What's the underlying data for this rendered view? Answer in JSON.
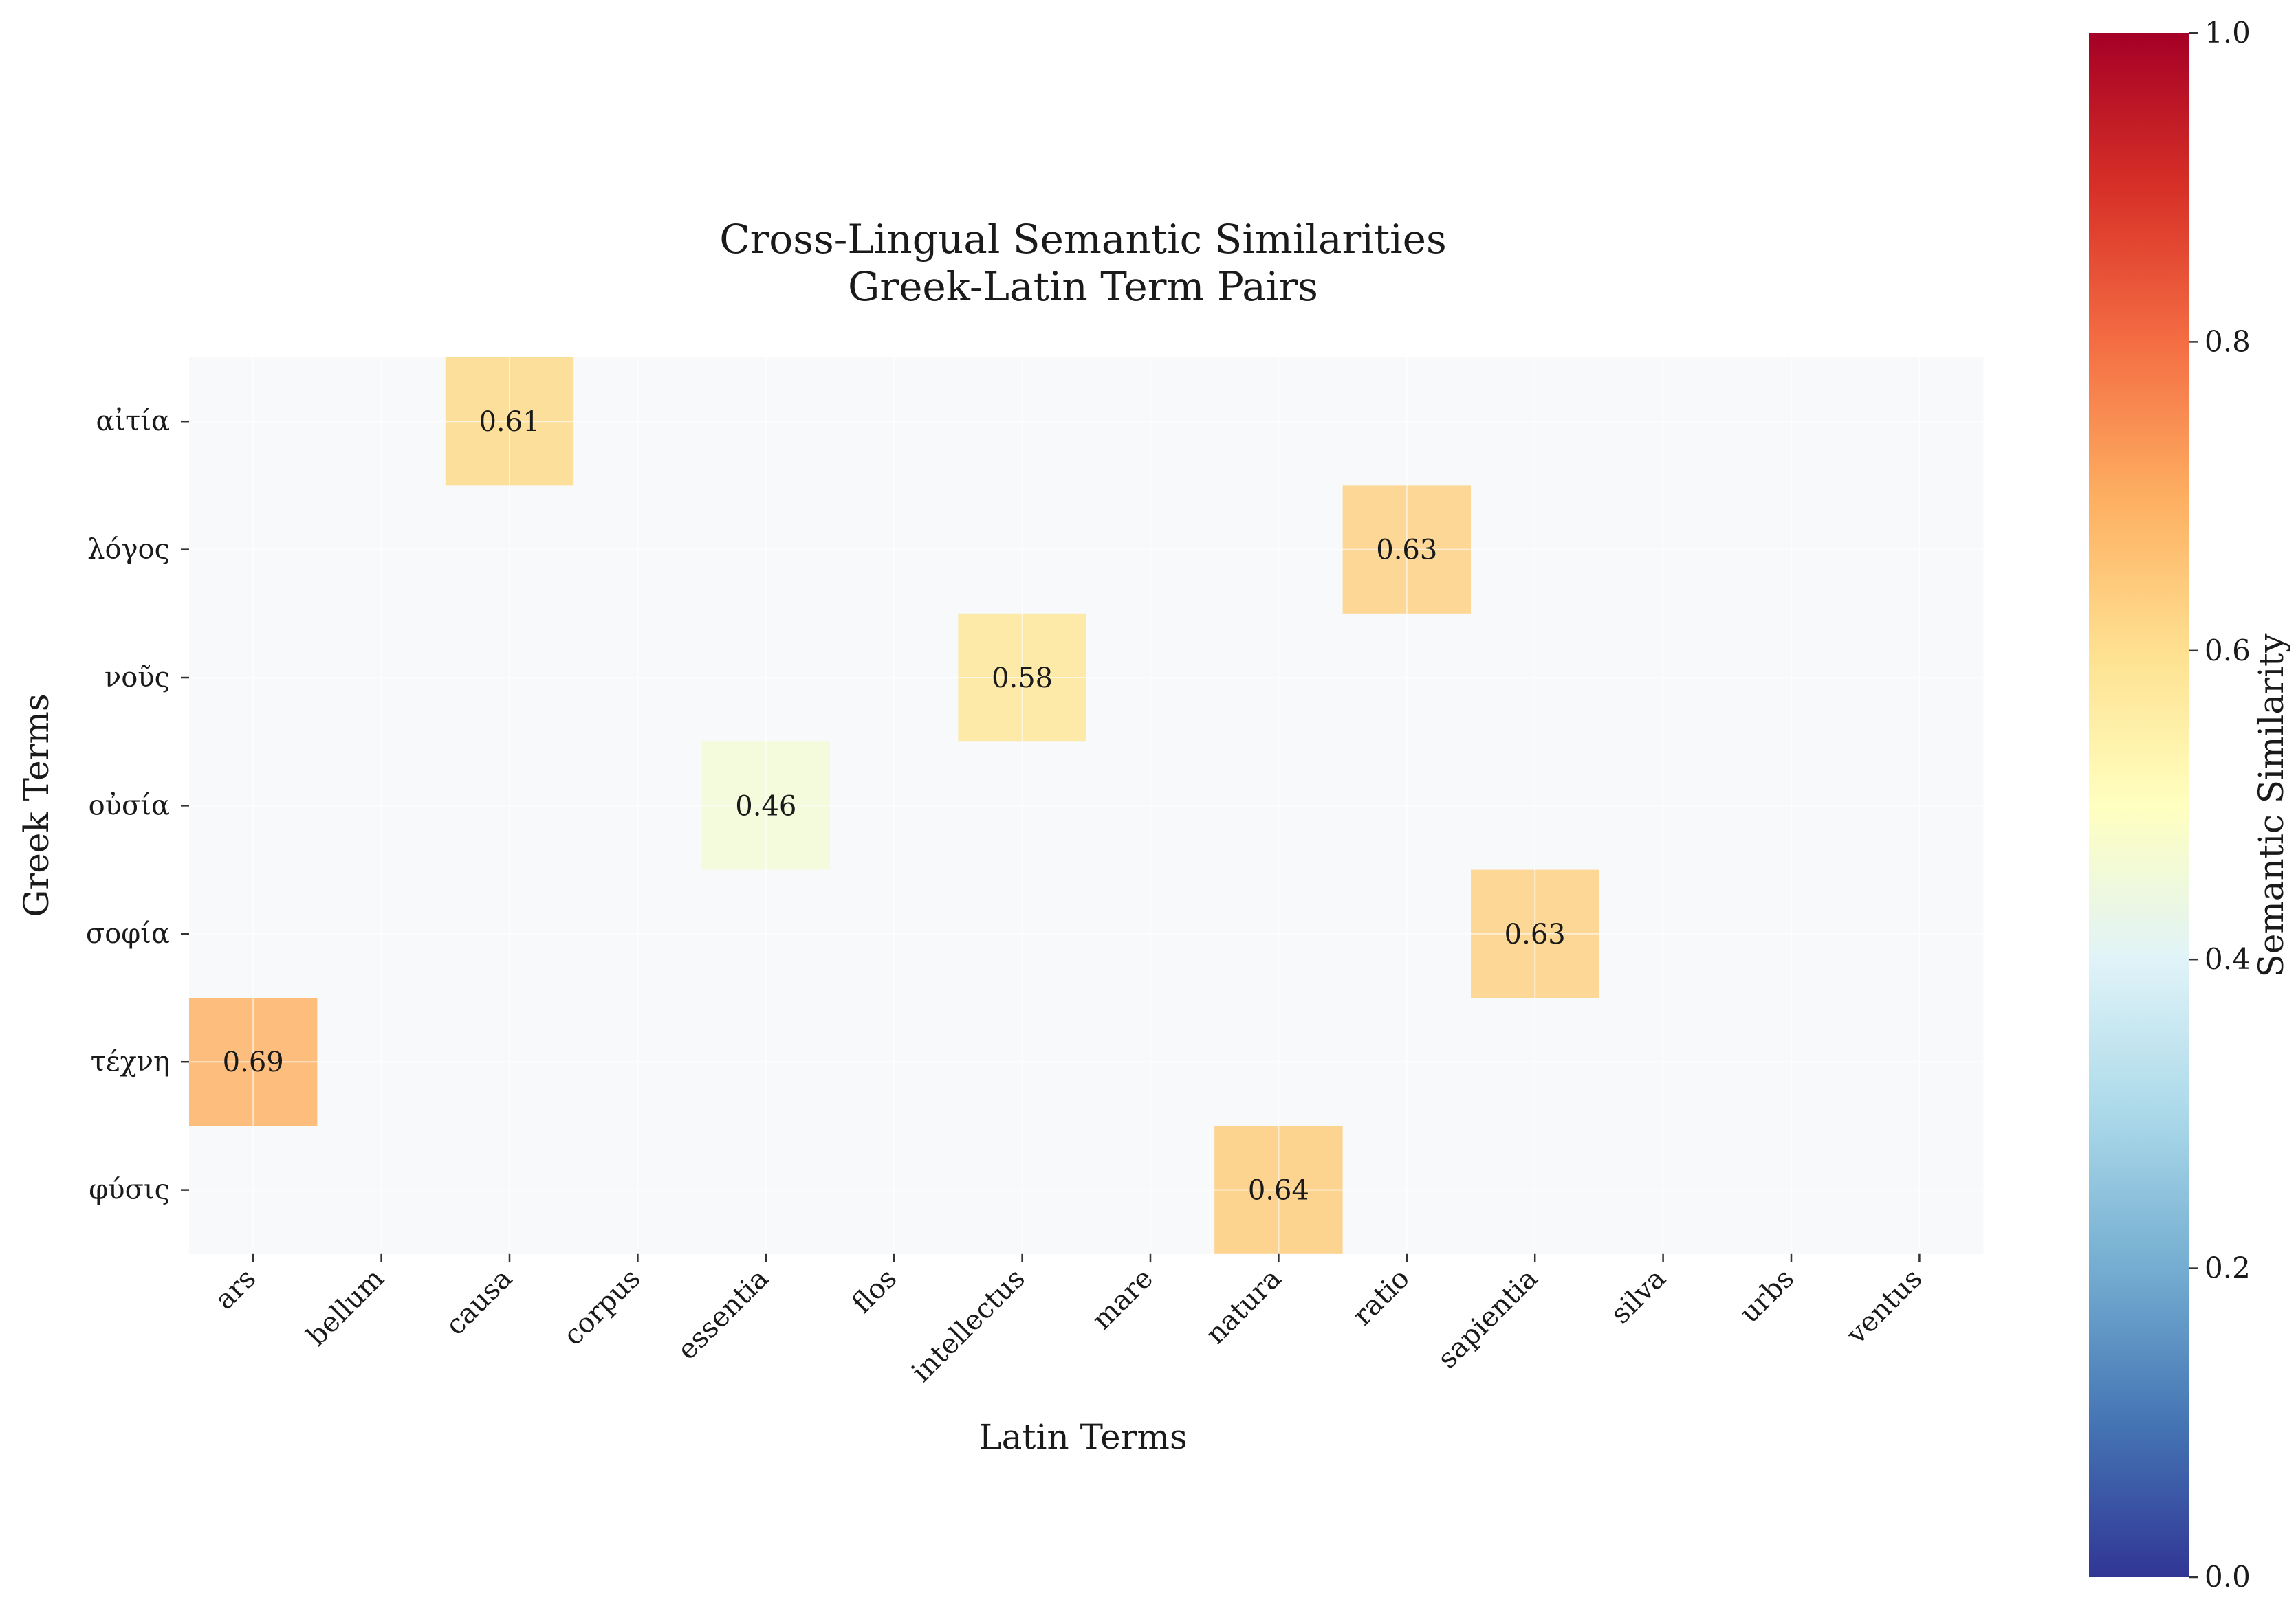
{
  "chart_data": {
    "type": "heatmap",
    "title_lines": [
      "Cross-Lingual Semantic Similarities",
      "Greek-Latin Term Pairs"
    ],
    "xlabel": "Latin Terms",
    "ylabel": "Greek Terms",
    "x_categories": [
      "ars",
      "bellum",
      "causa",
      "corpus",
      "essentia",
      "flos",
      "intellectus",
      "mare",
      "natura",
      "ratio",
      "sapientia",
      "silva",
      "urbs",
      "ventus"
    ],
    "y_categories": [
      "αἰτία",
      "λόγος",
      "νοῦς",
      "οὐσία",
      "σοφία",
      "τέχνη",
      "φύσις"
    ],
    "cells": [
      {
        "x": "causa",
        "y": "αἰτία",
        "value": 0.61,
        "label": "0.61"
      },
      {
        "x": "ratio",
        "y": "λόγος",
        "value": 0.63,
        "label": "0.63"
      },
      {
        "x": "intellectus",
        "y": "νοῦς",
        "value": 0.58,
        "label": "0.58"
      },
      {
        "x": "essentia",
        "y": "οὐσία",
        "value": 0.46,
        "label": "0.46"
      },
      {
        "x": "sapientia",
        "y": "σοφία",
        "value": 0.63,
        "label": "0.63"
      },
      {
        "x": "ars",
        "y": "τέχνη",
        "value": 0.69,
        "label": "0.69"
      },
      {
        "x": "natura",
        "y": "φύσις",
        "value": 0.64,
        "label": "0.64"
      }
    ],
    "colorbar": {
      "label": "Semantic Similarity",
      "range": [
        0,
        1
      ],
      "ticks": [
        "0.0",
        "0.2",
        "0.4",
        "0.6",
        "0.8",
        "1.0"
      ],
      "colormap": "RdYlBu_r",
      "stops": [
        "#313695",
        "#4575b4",
        "#74add1",
        "#abd9e9",
        "#e0f3f8",
        "#ffffbf",
        "#fee090",
        "#fdae61",
        "#f46d43",
        "#d73027",
        "#a50026"
      ]
    },
    "empty_cell_color": "#f8f9fa",
    "grid": true
  }
}
